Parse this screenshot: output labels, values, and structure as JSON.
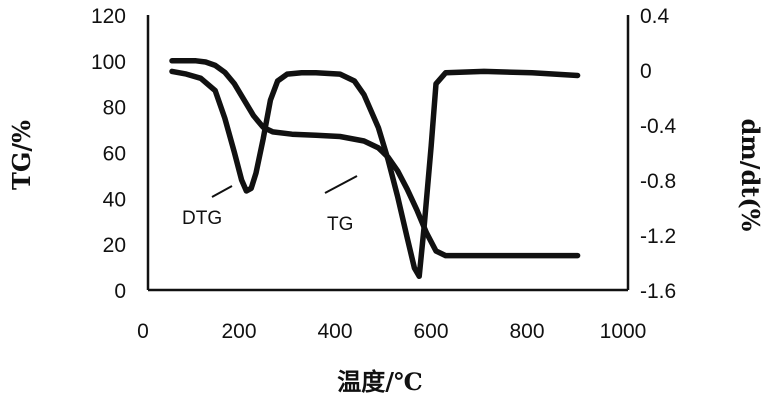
{
  "chart_data": {
    "type": "line",
    "title": "",
    "xlabel": "温度/℃",
    "ylabel_left": "TG/%",
    "ylabel_right": "dm/dt(%",
    "xlim": [
      0,
      1000
    ],
    "ylim_left": [
      0,
      120
    ],
    "ylim_right": [
      -1.6,
      0.4
    ],
    "x_ticks": [
      "0",
      "200",
      "400",
      "600",
      "800",
      "1000"
    ],
    "y_left_ticks": [
      "0",
      "20",
      "40",
      "60",
      "80",
      "100",
      "120"
    ],
    "y_right_ticks": [
      "-1.6",
      "-1.2",
      "-0.8",
      "-0.4",
      "0",
      "0.4"
    ],
    "grid": false,
    "legend": "none",
    "annotations": [
      {
        "text": "DTG",
        "series": "DTG"
      },
      {
        "text": "TG",
        "series": "TG"
      }
    ],
    "series": [
      {
        "name": "TG",
        "axis": "left",
        "x": [
          50,
          80,
          100,
          120,
          140,
          160,
          180,
          200,
          220,
          240,
          260,
          300,
          350,
          400,
          450,
          480,
          500,
          520,
          540,
          560,
          580,
          600,
          620,
          700,
          800,
          895
        ],
        "y": [
          100,
          100,
          100,
          99.5,
          98,
          95,
          90,
          83,
          76,
          71,
          69,
          68,
          67.5,
          67,
          65,
          62,
          58,
          52,
          44,
          35,
          25,
          17,
          15,
          15,
          15,
          15
        ]
      },
      {
        "name": "DTG",
        "axis": "right",
        "x": [
          50,
          80,
          110,
          140,
          160,
          180,
          195,
          205,
          215,
          225,
          240,
          255,
          270,
          290,
          320,
          350,
          400,
          430,
          450,
          480,
          500,
          520,
          540,
          555,
          565,
          575,
          590,
          600,
          620,
          700,
          800,
          895
        ],
        "y": [
          -0.01,
          -0.03,
          -0.06,
          -0.15,
          -0.35,
          -0.6,
          -0.8,
          -0.88,
          -0.86,
          -0.75,
          -0.5,
          -0.22,
          -0.08,
          -0.03,
          -0.02,
          -0.02,
          -0.03,
          -0.08,
          -0.18,
          -0.42,
          -0.65,
          -0.92,
          -1.22,
          -1.44,
          -1.5,
          -1.15,
          -0.55,
          -0.1,
          -0.02,
          -0.01,
          -0.02,
          -0.04
        ]
      }
    ]
  }
}
